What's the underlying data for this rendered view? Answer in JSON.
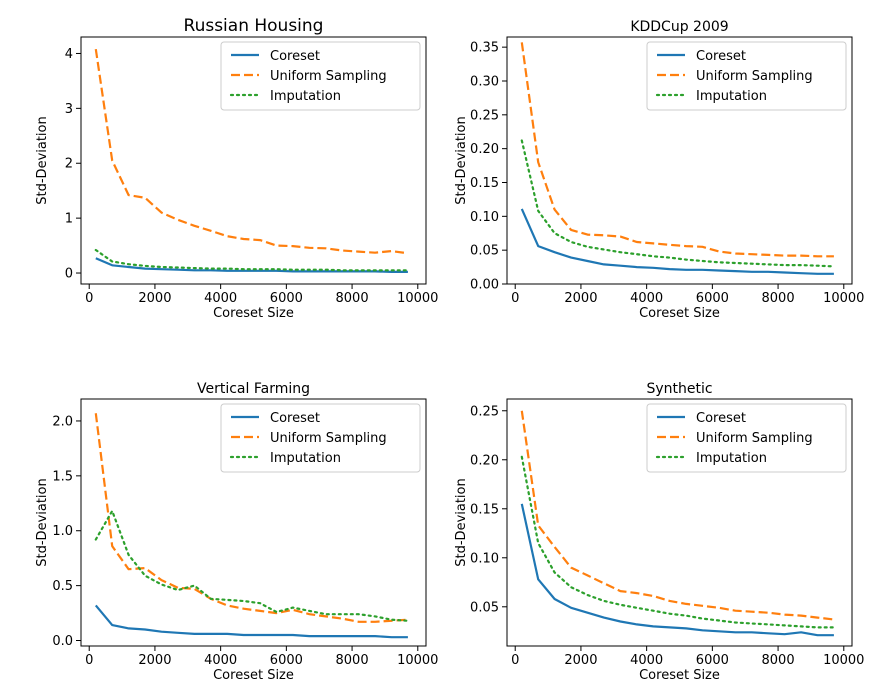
{
  "chart_data": [
    {
      "type": "line",
      "title": "Russian Housing",
      "xlabel": "Coreset Size",
      "ylabel": "Std-Deviation",
      "xlim": [
        -250,
        10250
      ],
      "ylim": [
        -0.2,
        4.3
      ],
      "xticks": [
        0,
        2000,
        4000,
        6000,
        8000,
        10000
      ],
      "xtick_labels": [
        "0",
        "2000",
        "4000",
        "6000",
        "8000",
        "10000"
      ],
      "yticks": [
        0,
        1,
        2,
        3,
        4
      ],
      "ytick_labels": [
        "0",
        "1",
        "2",
        "3",
        "4"
      ],
      "grid": false,
      "legend_position": "top-right",
      "x": [
        200,
        700,
        1200,
        1700,
        2200,
        2700,
        3200,
        3700,
        4200,
        4700,
        5200,
        5700,
        6200,
        6700,
        7200,
        7700,
        8200,
        8700,
        9200,
        9700
      ],
      "series": [
        {
          "name": "Coreset",
          "color": "#1f77b4",
          "style": "solid",
          "values": [
            0.27,
            0.14,
            0.11,
            0.08,
            0.07,
            0.06,
            0.05,
            0.05,
            0.04,
            0.04,
            0.04,
            0.04,
            0.03,
            0.03,
            0.03,
            0.03,
            0.03,
            0.03,
            0.02,
            0.02
          ]
        },
        {
          "name": "Uniform Sampling",
          "color": "#ff7f0e",
          "style": "dashed",
          "values": [
            4.08,
            2.05,
            1.42,
            1.37,
            1.1,
            0.97,
            0.86,
            0.77,
            0.67,
            0.62,
            0.6,
            0.5,
            0.49,
            0.46,
            0.45,
            0.41,
            0.39,
            0.37,
            0.4,
            0.36
          ]
        },
        {
          "name": "Imputation",
          "color": "#2ca02c",
          "style": "dotted",
          "values": [
            0.42,
            0.21,
            0.16,
            0.13,
            0.11,
            0.1,
            0.09,
            0.08,
            0.08,
            0.07,
            0.07,
            0.07,
            0.06,
            0.06,
            0.06,
            0.05,
            0.05,
            0.05,
            0.05,
            0.05
          ]
        }
      ]
    },
    {
      "type": "line",
      "title": "KDDCup 2009",
      "xlabel": "Coreset Size",
      "ylabel": "Std-Deviation",
      "xlim": [
        -250,
        10250
      ],
      "ylim": [
        0,
        0.365
      ],
      "xticks": [
        0,
        2000,
        4000,
        6000,
        8000,
        10000
      ],
      "xtick_labels": [
        "0",
        "2000",
        "4000",
        "6000",
        "8000",
        "10000"
      ],
      "yticks": [
        0,
        0.05,
        0.1,
        0.15,
        0.2,
        0.25,
        0.3,
        0.35
      ],
      "ytick_labels": [
        "0.00",
        "0.05",
        "0.10",
        "0.15",
        "0.20",
        "0.25",
        "0.30",
        "0.35"
      ],
      "grid": false,
      "legend_position": "top-right",
      "x": [
        200,
        700,
        1200,
        1700,
        2200,
        2700,
        3200,
        3700,
        4200,
        4700,
        5200,
        5700,
        6200,
        6700,
        7200,
        7700,
        8200,
        8700,
        9200,
        9700
      ],
      "series": [
        {
          "name": "Coreset",
          "color": "#1f77b4",
          "style": "solid",
          "values": [
            0.111,
            0.056,
            0.047,
            0.039,
            0.034,
            0.029,
            0.027,
            0.025,
            0.024,
            0.022,
            0.021,
            0.021,
            0.02,
            0.019,
            0.018,
            0.018,
            0.017,
            0.016,
            0.015,
            0.015
          ]
        },
        {
          "name": "Uniform Sampling",
          "color": "#ff7f0e",
          "style": "dashed",
          "values": [
            0.357,
            0.18,
            0.11,
            0.08,
            0.073,
            0.072,
            0.07,
            0.062,
            0.06,
            0.058,
            0.056,
            0.055,
            0.048,
            0.045,
            0.044,
            0.043,
            0.042,
            0.042,
            0.041,
            0.041
          ]
        },
        {
          "name": "Imputation",
          "color": "#2ca02c",
          "style": "dotted",
          "values": [
            0.212,
            0.108,
            0.075,
            0.062,
            0.055,
            0.051,
            0.047,
            0.044,
            0.041,
            0.039,
            0.036,
            0.034,
            0.032,
            0.031,
            0.03,
            0.029,
            0.028,
            0.028,
            0.027,
            0.026
          ]
        }
      ]
    },
    {
      "type": "line",
      "title": "Vertical Farming",
      "xlabel": "Coreset Size",
      "ylabel": "Std-Deviation",
      "xlim": [
        -250,
        10250
      ],
      "ylim": [
        -0.05,
        2.2
      ],
      "xticks": [
        0,
        2000,
        4000,
        6000,
        8000,
        10000
      ],
      "xtick_labels": [
        "0",
        "2000",
        "4000",
        "6000",
        "8000",
        "10000"
      ],
      "yticks": [
        0,
        0.5,
        1.0,
        1.5,
        2.0
      ],
      "ytick_labels": [
        "0.0",
        "0.5",
        "1.0",
        "1.5",
        "2.0"
      ],
      "grid": false,
      "legend_position": "top-right",
      "x": [
        200,
        700,
        1200,
        1700,
        2200,
        2700,
        3200,
        3700,
        4200,
        4700,
        5200,
        5700,
        6200,
        6700,
        7200,
        7700,
        8200,
        8700,
        9200,
        9700
      ],
      "series": [
        {
          "name": "Coreset",
          "color": "#1f77b4",
          "style": "solid",
          "values": [
            0.32,
            0.14,
            0.11,
            0.1,
            0.08,
            0.07,
            0.06,
            0.06,
            0.06,
            0.05,
            0.05,
            0.05,
            0.05,
            0.04,
            0.04,
            0.04,
            0.04,
            0.04,
            0.03,
            0.03
          ]
        },
        {
          "name": "Uniform Sampling",
          "color": "#ff7f0e",
          "style": "dashed",
          "values": [
            2.07,
            0.86,
            0.65,
            0.66,
            0.55,
            0.48,
            0.47,
            0.38,
            0.32,
            0.29,
            0.27,
            0.25,
            0.28,
            0.24,
            0.22,
            0.2,
            0.17,
            0.17,
            0.18,
            0.19
          ]
        },
        {
          "name": "Imputation",
          "color": "#2ca02c",
          "style": "dotted",
          "values": [
            0.92,
            1.18,
            0.78,
            0.59,
            0.51,
            0.46,
            0.5,
            0.38,
            0.37,
            0.36,
            0.34,
            0.26,
            0.3,
            0.27,
            0.24,
            0.24,
            0.24,
            0.22,
            0.19,
            0.18
          ]
        }
      ]
    },
    {
      "type": "line",
      "title": "Synthetic",
      "xlabel": "Coreset Size",
      "ylabel": "Std-Deviation",
      "xlim": [
        -250,
        10250
      ],
      "ylim": [
        0.01,
        0.262
      ],
      "xticks": [
        0,
        2000,
        4000,
        6000,
        8000,
        10000
      ],
      "xtick_labels": [
        "0",
        "2000",
        "4000",
        "6000",
        "8000",
        "10000"
      ],
      "yticks": [
        0.05,
        0.1,
        0.15,
        0.2,
        0.25
      ],
      "ytick_labels": [
        "0.05",
        "0.10",
        "0.15",
        "0.20",
        "0.25"
      ],
      "grid": false,
      "legend_position": "top-right",
      "x": [
        200,
        700,
        1200,
        1700,
        2200,
        2700,
        3200,
        3700,
        4200,
        4700,
        5200,
        5700,
        6200,
        6700,
        7200,
        7700,
        8200,
        8700,
        9200,
        9700
      ],
      "series": [
        {
          "name": "Coreset",
          "color": "#1f77b4",
          "style": "solid",
          "values": [
            0.155,
            0.078,
            0.058,
            0.049,
            0.044,
            0.039,
            0.035,
            0.032,
            0.03,
            0.029,
            0.028,
            0.026,
            0.025,
            0.024,
            0.024,
            0.023,
            0.022,
            0.024,
            0.021,
            0.021
          ]
        },
        {
          "name": "Uniform Sampling",
          "color": "#ff7f0e",
          "style": "dashed",
          "values": [
            0.25,
            0.133,
            0.111,
            0.09,
            0.082,
            0.074,
            0.066,
            0.064,
            0.061,
            0.056,
            0.053,
            0.051,
            0.049,
            0.046,
            0.045,
            0.044,
            0.042,
            0.041,
            0.039,
            0.037
          ]
        },
        {
          "name": "Imputation",
          "color": "#2ca02c",
          "style": "dotted",
          "values": [
            0.203,
            0.115,
            0.085,
            0.07,
            0.062,
            0.056,
            0.052,
            0.049,
            0.046,
            0.043,
            0.041,
            0.038,
            0.036,
            0.034,
            0.033,
            0.032,
            0.031,
            0.03,
            0.029,
            0.029
          ]
        }
      ]
    }
  ]
}
